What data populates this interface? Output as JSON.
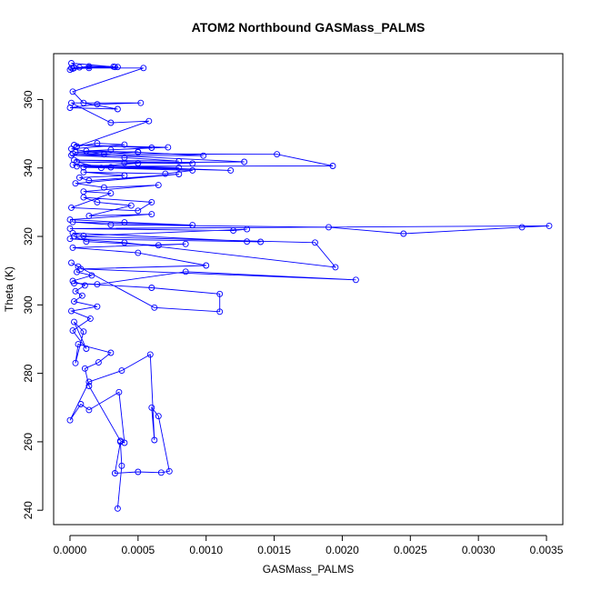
{
  "chart_data": {
    "type": "line",
    "title": "ATOM2 Northbound GASMass_PALMS",
    "xlabel": "GASMass_PALMS",
    "ylabel": "Theta (K)",
    "xlim": [
      -0.00012,
      0.00362
    ],
    "ylim": [
      235.8,
      373.4
    ],
    "xticks": [
      0.0,
      0.0005,
      0.001,
      0.0015,
      0.002,
      0.0025,
      0.003,
      0.0035
    ],
    "xtick_labels": [
      "0.0000",
      "0.0005",
      "0.0010",
      "0.0015",
      "0.0020",
      "0.0025",
      "0.0030",
      "0.0035"
    ],
    "yticks": [
      240,
      260,
      280,
      300,
      320,
      340,
      360
    ],
    "ytick_labels": [
      "240",
      "260",
      "280",
      "300",
      "320",
      "340",
      "360"
    ],
    "grid": false,
    "legend": "none",
    "series": [
      {
        "color": "#0000ff",
        "marker": "open-circle",
        "x": [
          0.00035,
          0.00038,
          0.00037,
          0.00033,
          0.0005,
          0.00067,
          0.00073,
          0.00065,
          0.0006,
          0.00062,
          0.00059,
          0.00038,
          0.00014,
          0.0,
          8e-05,
          0.00014,
          0.00036,
          0.0004,
          0.00037,
          0.00014,
          0.00011,
          0.00021,
          0.0003,
          6e-05,
          4e-05,
          0.0001,
          3e-05,
          0.00012,
          2e-05,
          0.00015,
          1e-05,
          0.0002,
          3e-05,
          9e-05,
          4e-05,
          0.00011,
          2e-05,
          0.00016,
          5e-05,
          6e-05,
          1e-05,
          0.00062,
          0.0011,
          0.0011,
          0.0006,
          3e-05,
          0.0002,
          0.00085,
          0.0021,
          8e-05,
          0.001,
          0.0005,
          2e-05,
          0.00085,
          0.00065,
          0.00012,
          3e-05,
          0.0018,
          0.00195,
          0.0004,
          0.0,
          0.0013,
          0.0014,
          2e-05,
          0.0001,
          0.0013,
          0.0012,
          0.0,
          0.00352,
          0.00332,
          0.00245,
          0.0019,
          0.0003,
          2e-05,
          0.0009,
          0.0004,
          0.0,
          0.0006,
          0.00014,
          0.00045,
          0.0002,
          0.0001,
          0.0006,
          0.0005,
          1e-05,
          0.0003,
          0.0001,
          0.00065,
          0.00025,
          4e-05,
          0.0008,
          0.00014,
          7e-05,
          0.0004,
          0.0001,
          0.0007,
          0.0009,
          0.0001,
          0.0005,
          5e-05,
          0.00023,
          0.0008,
          2e-05,
          0.00118,
          0.0003,
          5e-05,
          0.00193,
          0.00152,
          2e-05,
          0.00128,
          0.0004,
          0.0009,
          3e-05,
          0.0008,
          0.0004,
          1e-05,
          0.00098,
          0.0005,
          0.00012,
          0.00072,
          3e-05,
          0.0006,
          0.0003,
          4e-05,
          0.0005,
          0.00025,
          1e-05,
          0.0004,
          0.0002,
          5e-05,
          0.00058,
          0.0003,
          1e-05,
          0.00052,
          0.0002,
          0.0,
          0.00035,
          0.0001,
          2e-05,
          0.00054,
          1e-05,
          0.00035,
          2e-05,
          0.00014,
          0.00033,
          1e-05,
          7e-05,
          0.00032,
          0.00014,
          3e-05,
          0.0
        ],
        "y": [
          240.5,
          253.0,
          260.0,
          250.8,
          251.2,
          251.0,
          251.4,
          267.5,
          270.0,
          260.5,
          285.5,
          280.8,
          277.5,
          266.3,
          271.0,
          269.3,
          274.5,
          259.7,
          260.3,
          276.3,
          281.4,
          283.2,
          286.0,
          288.5,
          283.0,
          292.2,
          295.0,
          287.2,
          292.5,
          296.0,
          298.2,
          299.5,
          301.0,
          302.7,
          304.0,
          305.7,
          307.0,
          308.6,
          309.6,
          311.2,
          312.3,
          299.2,
          298.0,
          303.2,
          305.0,
          306.3,
          306.0,
          309.7,
          307.3,
          310.5,
          311.5,
          315.2,
          316.7,
          317.8,
          317.4,
          318.5,
          320.0,
          318.2,
          311.0,
          318.2,
          319.3,
          318.5,
          318.4,
          321.0,
          320.2,
          322.1,
          321.7,
          322.3,
          323.1,
          322.7,
          320.8,
          322.7,
          323.4,
          324.2,
          323.3,
          324.1,
          324.9,
          326.5,
          326.0,
          329.0,
          330.0,
          331.4,
          330.0,
          327.5,
          328.4,
          332.6,
          333.1,
          335.0,
          334.3,
          335.5,
          338.2,
          336.3,
          337.2,
          337.8,
          338.8,
          338.3,
          339.3,
          340.2,
          341.4,
          341.8,
          340.0,
          340.1,
          340.9,
          339.3,
          340.2,
          340.5,
          340.6,
          344.0,
          344.2,
          341.8,
          341.5,
          341.3,
          342.3,
          342.0,
          343.0,
          343.7,
          343.6,
          344.6,
          345.0,
          346.0,
          346.7,
          345.9,
          345.3,
          344.6,
          344.7,
          344.0,
          345.6,
          346.8,
          347.2,
          346.3,
          353.7,
          353.2,
          359.0,
          359.0,
          358.6,
          357.6,
          357.2,
          359.0,
          362.3,
          369.2,
          369.2,
          369.5,
          369.0,
          369.2,
          369.5,
          370.6,
          369.4,
          369.6,
          369.7,
          369.2,
          368.7
        ]
      }
    ]
  }
}
